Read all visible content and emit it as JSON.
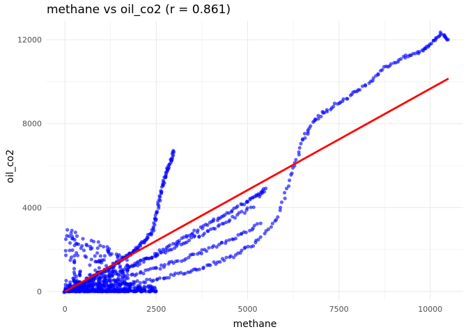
{
  "chart_data": {
    "type": "scatter",
    "title": "methane vs oil_co2 (r = 0.861)",
    "xlabel": "methane",
    "ylabel": "oil_co2",
    "xlim": [
      -500,
      10900
    ],
    "ylim": [
      -400,
      12900
    ],
    "x_ticks": [
      0,
      2500,
      5000,
      7500,
      10000
    ],
    "x_tick_labels": [
      "0",
      "2500",
      "5000",
      "7500",
      "10000"
    ],
    "y_ticks": [
      0,
      4000,
      8000,
      12000
    ],
    "y_tick_labels": [
      "0",
      "4000",
      "8000",
      "12000"
    ],
    "grid": true,
    "colors": {
      "points": "#0000ff",
      "fit_line": "#ff0000",
      "grid": "#ebebeb"
    },
    "fit_line": {
      "x": [
        0,
        10500
      ],
      "y": [
        0,
        10150
      ]
    },
    "curves": [
      {
        "x": [
          0,
          200,
          400,
          600,
          800,
          1000,
          1200,
          1400,
          1600,
          1800,
          2000,
          2200,
          2400,
          2500,
          2600,
          2700,
          2800,
          2900,
          3000
        ],
        "y": [
          0,
          150,
          350,
          500,
          700,
          900,
          1100,
          1300,
          1550,
          1800,
          2100,
          2450,
          2900,
          3600,
          4500,
          5200,
          5800,
          6200,
          6800
        ]
      },
      {
        "x": [
          0,
          500,
          1000,
          1500,
          2000,
          2500,
          3000,
          3500,
          4000,
          4500,
          5000,
          5300,
          5500
        ],
        "y": [
          0,
          200,
          500,
          900,
          1300,
          1800,
          2300,
          2800,
          3300,
          3800,
          4300,
          4600,
          4900
        ]
      },
      {
        "x": [
          400,
          1000,
          1600,
          2200,
          2800,
          3400,
          4000,
          4600,
          5200
        ],
        "y": [
          300,
          700,
          1100,
          1500,
          1950,
          2450,
          2950,
          3500,
          4100
        ]
      },
      {
        "x": [
          600,
          1200,
          1800,
          2400,
          3000,
          3600,
          4200,
          4800,
          5400
        ],
        "y": [
          200,
          450,
          750,
          1050,
          1400,
          1800,
          2200,
          2700,
          3300
        ]
      },
      {
        "x": [
          900,
          1500,
          2200,
          2800,
          3400,
          4000,
          4600,
          5200,
          5800,
          6200,
          6500,
          6800,
          7200,
          7700,
          8200,
          8700,
          9200,
          9700,
          10000,
          10300,
          10500
        ],
        "y": [
          200,
          350,
          500,
          700,
          950,
          1300,
          1700,
          2300,
          3400,
          5500,
          7200,
          8100,
          8700,
          9200,
          9800,
          10600,
          11100,
          11400,
          11800,
          12300,
          12000
        ]
      }
    ],
    "dense_clusters": [
      {
        "x_max": 2500,
        "y_max": 600
      },
      {
        "x_max": 1800,
        "y_max": 3300
      }
    ]
  }
}
